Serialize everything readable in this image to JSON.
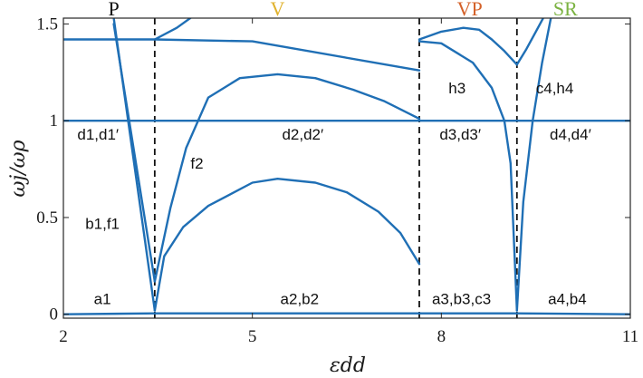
{
  "chart_data": {
    "type": "line",
    "xlabel": "εdd",
    "ylabel": "ωj/ωρ",
    "xlim": [
      2,
      11
    ],
    "ylim": [
      -0.02,
      1.53
    ],
    "xticks": [
      2,
      5,
      8,
      11
    ],
    "yticks": [
      0,
      0.5,
      1,
      1.5
    ],
    "ytick_labels": [
      "0",
      "0.5",
      "1",
      "1.5"
    ],
    "grid": false,
    "line_color": "#1f6fb5",
    "phase_boundaries": [
      3.45,
      7.65,
      9.2
    ],
    "regions": [
      {
        "label": "P",
        "x": 2.8,
        "color": "#111111"
      },
      {
        "label": "V",
        "x": 5.4,
        "color": "#e0b22e"
      },
      {
        "label": "VP",
        "x": 8.45,
        "color": "#d4622a"
      },
      {
        "label": "SR",
        "x": 9.97,
        "color": "#7cb342"
      }
    ],
    "annotations": [
      {
        "text": "d1,d1′",
        "x": 2.55,
        "y": 0.93
      },
      {
        "text": "b1,f1",
        "x": 2.62,
        "y": 0.47
      },
      {
        "text": "a1",
        "x": 2.62,
        "y": 0.08
      },
      {
        "text": "f2",
        "x": 4.12,
        "y": 0.78
      },
      {
        "text": "d2,d2′",
        "x": 5.8,
        "y": 0.93
      },
      {
        "text": "a2,b2",
        "x": 5.75,
        "y": 0.08
      },
      {
        "text": "h3",
        "x": 8.25,
        "y": 1.17
      },
      {
        "text": "d3,d3′",
        "x": 8.3,
        "y": 0.93
      },
      {
        "text": "a3,b3,c3",
        "x": 8.32,
        "y": 0.08
      },
      {
        "text": "c4,h4",
        "x": 9.8,
        "y": 1.17
      },
      {
        "text": "d4,d4′",
        "x": 10.05,
        "y": 0.93
      },
      {
        "text": "a4,b4",
        "x": 10.0,
        "y": 0.08
      }
    ],
    "series": [
      {
        "x": [
          2,
          11
        ],
        "y": [
          1.0,
          1.0
        ]
      },
      {
        "x": [
          2,
          3.45,
          7.65,
          9.2,
          11
        ],
        "y": [
          0.0,
          0.005,
          0.005,
          0.005,
          0.0
        ]
      },
      {
        "x": [
          2,
          3.45,
          5,
          7.65
        ],
        "y": [
          1.42,
          1.42,
          1.41,
          1.26
        ]
      },
      {
        "x": [
          2.8,
          3.45
        ],
        "y": [
          1.53,
          0.02
        ]
      },
      {
        "x": [
          2.8,
          3.45
        ],
        "y": [
          1.5,
          0.17
        ]
      },
      {
        "x": [
          3.45,
          3.6,
          3.9,
          4.3,
          5.0,
          5.4,
          6.0,
          6.5,
          7.0,
          7.35,
          7.65
        ],
        "y": [
          0.02,
          0.3,
          0.45,
          0.56,
          0.68,
          0.7,
          0.68,
          0.63,
          0.53,
          0.42,
          0.26
        ]
      },
      {
        "x": [
          3.45,
          3.7,
          3.95,
          4.3,
          4.8,
          5.4,
          6.0,
          6.6,
          7.1,
          7.65
        ],
        "y": [
          0.17,
          0.55,
          0.86,
          1.12,
          1.22,
          1.24,
          1.22,
          1.16,
          1.1,
          1.01
        ]
      },
      {
        "x": [
          3.45,
          3.8,
          4.1
        ],
        "y": [
          1.42,
          1.48,
          1.55
        ]
      },
      {
        "x": [
          7.65,
          8.0,
          8.35,
          8.6,
          8.8,
          9.0,
          9.2
        ],
        "y": [
          1.42,
          1.46,
          1.48,
          1.47,
          1.42,
          1.36,
          1.29
        ]
      },
      {
        "x": [
          7.65,
          8.0,
          8.5,
          8.8,
          9.0,
          9.1,
          9.2
        ],
        "y": [
          1.41,
          1.4,
          1.3,
          1.17,
          1.0,
          0.78,
          0.02
        ]
      },
      {
        "x": [
          9.2,
          9.35,
          9.5,
          9.65
        ],
        "y": [
          1.29,
          1.37,
          1.46,
          1.55
        ]
      },
      {
        "x": [
          9.2,
          9.3,
          9.45,
          9.6,
          9.75
        ],
        "y": [
          0.02,
          0.58,
          1.0,
          1.3,
          1.55
        ]
      }
    ]
  }
}
